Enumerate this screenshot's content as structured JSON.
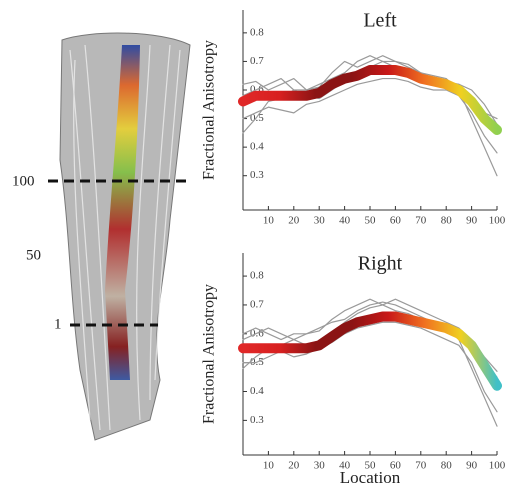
{
  "figure": {
    "labels": [
      "100",
      "50",
      "1"
    ]
  },
  "chart_data": [
    {
      "type": "line",
      "title": "Left",
      "ylabel": "Fractional Anisotropy",
      "x": [
        0,
        5,
        10,
        15,
        20,
        25,
        30,
        35,
        40,
        45,
        50,
        55,
        60,
        65,
        70,
        75,
        80,
        85,
        90,
        95,
        100
      ],
      "xlim": [
        0,
        100
      ],
      "xticks": [
        10,
        20,
        30,
        40,
        50,
        60,
        70,
        80,
        90,
        100
      ],
      "ylim": [
        0.18,
        0.88
      ],
      "yticks": [
        0.3,
        0.4,
        0.5,
        0.6,
        0.7,
        0.8
      ],
      "series": [
        {
          "color": "#9a9a9a",
          "values": [
            0.62,
            0.63,
            0.6,
            0.62,
            0.64,
            0.6,
            0.61,
            0.66,
            0.7,
            0.68,
            0.7,
            0.72,
            0.7,
            0.69,
            0.66,
            0.64,
            0.63,
            0.62,
            0.58,
            0.52,
            0.5
          ]
        },
        {
          "color": "#9a9a9a",
          "values": [
            0.5,
            0.52,
            0.54,
            0.53,
            0.52,
            0.55,
            0.56,
            0.58,
            0.6,
            0.62,
            0.63,
            0.64,
            0.64,
            0.63,
            0.61,
            0.6,
            0.6,
            0.58,
            0.52,
            0.44,
            0.38
          ]
        },
        {
          "color": "#9a9a9a",
          "values": [
            0.45,
            0.5,
            0.56,
            0.57,
            0.6,
            0.58,
            0.57,
            0.6,
            0.63,
            0.66,
            0.68,
            0.7,
            0.7,
            0.68,
            0.66,
            0.65,
            0.64,
            0.6,
            0.5,
            0.4,
            0.3
          ]
        },
        {
          "color": "#9a9a9a",
          "values": [
            0.58,
            0.6,
            0.62,
            0.64,
            0.6,
            0.6,
            0.62,
            0.64,
            0.66,
            0.7,
            0.72,
            0.7,
            0.68,
            0.67,
            0.66,
            0.64,
            0.62,
            0.62,
            0.6,
            0.55,
            0.48
          ]
        },
        {
          "gradient": [
            "#e02828",
            "#d82020",
            "#8b1414",
            "#8b1414",
            "#c81818",
            "#f07020",
            "#f0d020",
            "#90d050"
          ],
          "values": [
            0.56,
            0.58,
            0.58,
            0.58,
            0.58,
            0.58,
            0.59,
            0.62,
            0.64,
            0.65,
            0.67,
            0.67,
            0.67,
            0.66,
            0.64,
            0.63,
            0.62,
            0.6,
            0.56,
            0.5,
            0.46
          ]
        }
      ]
    },
    {
      "type": "line",
      "title": "Right",
      "ylabel": "Fractional Anisotropy",
      "xlabel": "Location",
      "x": [
        0,
        5,
        10,
        15,
        20,
        25,
        30,
        35,
        40,
        45,
        50,
        55,
        60,
        65,
        70,
        75,
        80,
        85,
        90,
        95,
        100
      ],
      "xlim": [
        0,
        100
      ],
      "xticks": [
        10,
        20,
        30,
        40,
        50,
        60,
        70,
        80,
        90,
        100
      ],
      "ylim": [
        0.18,
        0.88
      ],
      "yticks": [
        0.3,
        0.4,
        0.5,
        0.6,
        0.7,
        0.8
      ],
      "series": [
        {
          "color": "#9a9a9a",
          "values": [
            0.6,
            0.62,
            0.6,
            0.58,
            0.6,
            0.6,
            0.61,
            0.65,
            0.68,
            0.7,
            0.72,
            0.7,
            0.72,
            0.7,
            0.68,
            0.66,
            0.64,
            0.62,
            0.58,
            0.5,
            0.45
          ]
        },
        {
          "color": "#9a9a9a",
          "values": [
            0.5,
            0.5,
            0.52,
            0.54,
            0.52,
            0.53,
            0.55,
            0.57,
            0.6,
            0.62,
            0.63,
            0.64,
            0.64,
            0.63,
            0.62,
            0.6,
            0.58,
            0.56,
            0.5,
            0.4,
            0.33
          ]
        },
        {
          "color": "#9a9a9a",
          "values": [
            0.48,
            0.52,
            0.55,
            0.56,
            0.58,
            0.56,
            0.56,
            0.6,
            0.64,
            0.67,
            0.69,
            0.7,
            0.68,
            0.67,
            0.65,
            0.64,
            0.62,
            0.58,
            0.48,
            0.38,
            0.28
          ]
        },
        {
          "color": "#9a9a9a",
          "values": [
            0.58,
            0.6,
            0.62,
            0.6,
            0.58,
            0.6,
            0.62,
            0.64,
            0.65,
            0.68,
            0.7,
            0.71,
            0.7,
            0.68,
            0.66,
            0.64,
            0.62,
            0.6,
            0.58,
            0.52,
            0.47
          ]
        },
        {
          "gradient": [
            "#e02828",
            "#d82020",
            "#8b1414",
            "#8b1414",
            "#c81818",
            "#f07020",
            "#f0d020",
            "#40c0c8"
          ],
          "values": [
            0.55,
            0.55,
            0.55,
            0.55,
            0.55,
            0.55,
            0.56,
            0.59,
            0.62,
            0.64,
            0.65,
            0.66,
            0.66,
            0.65,
            0.64,
            0.63,
            0.62,
            0.6,
            0.56,
            0.49,
            0.42
          ]
        }
      ]
    }
  ]
}
